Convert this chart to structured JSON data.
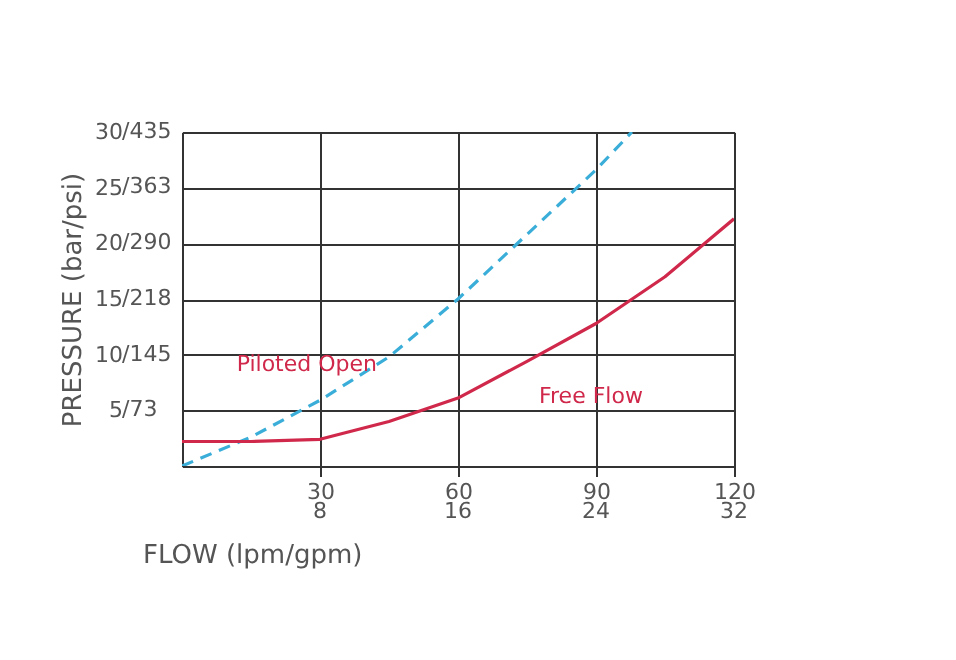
{
  "chart_data": {
    "type": "line",
    "xlabel": "FLOW (lpm/gpm)",
    "ylabel": "PRESSURE (bar/psi)",
    "xlim": [
      0,
      120
    ],
    "ylim": [
      0,
      30
    ],
    "xticks": [
      30,
      60,
      90,
      120
    ],
    "x2lim": [
      0,
      32
    ],
    "x2ticks": [
      8,
      16,
      24,
      32
    ],
    "yticks": [
      5,
      10,
      15,
      20,
      25,
      30
    ],
    "y2lim": [
      0,
      435
    ],
    "y2ticks": [
      {
        "value": 73,
        "label": "/73"
      },
      {
        "value": 145,
        "label": "/145"
      },
      {
        "value": 218,
        "label": "/218"
      },
      {
        "value": 290,
        "label": "/290"
      },
      {
        "value": 363,
        "label": "/363"
      },
      {
        "value": 435,
        "label": "/435"
      }
    ],
    "grid": true,
    "series": [
      {
        "name": "Piloted Open",
        "color": "#3aaed8",
        "line_style": "dashed",
        "x": [
          0,
          15,
          30,
          45,
          60,
          75,
          90,
          97.8
        ],
        "values": [
          0,
          2.6,
          5.9,
          9.8,
          15,
          20.8,
          26.6,
          30
        ]
      },
      {
        "name": "Free Flow",
        "color": "#d0284a",
        "line_style": "solid",
        "x": [
          0,
          15,
          30,
          45,
          60,
          75,
          90,
          105,
          120
        ],
        "values": [
          2.2,
          2.2,
          2.4,
          4,
          6.1,
          9.4,
          12.8,
          17,
          22.2
        ]
      }
    ]
  }
}
